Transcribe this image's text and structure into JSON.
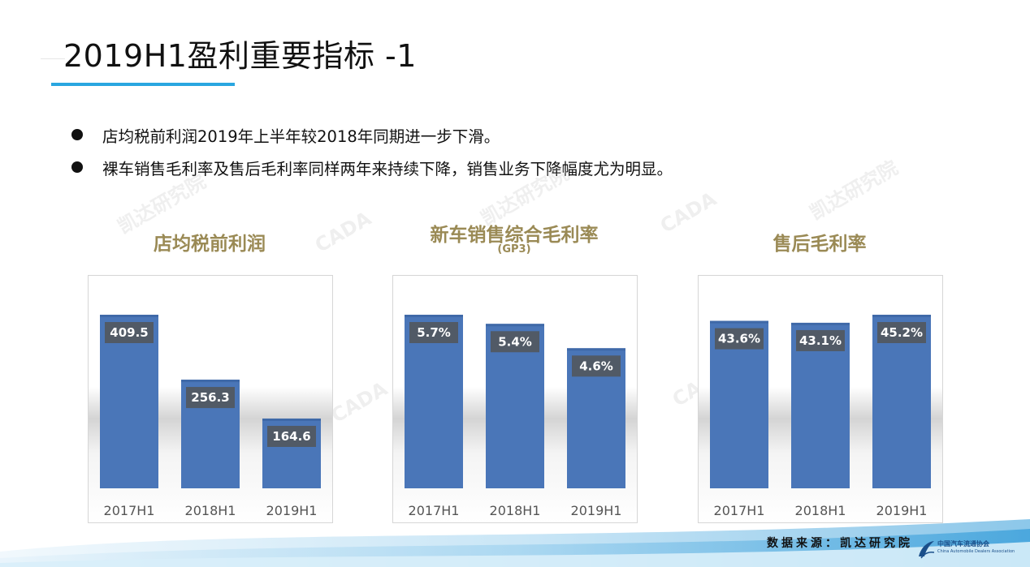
{
  "page": {
    "title": "2019H1盈利重要指标 -1",
    "bullets": [
      "店均税前利润2019年上半年较2018年同期进一步下滑。",
      "裸车销售毛利率及售后毛利率同样两年来持续下降，销售业务下降幅度尤为明显。"
    ],
    "source": "数据来源：凯达研究院",
    "org_name": "中国汽车流通协会",
    "org_name_en": "China Automobile Dealers Association",
    "watermark_text_cn": "凯达研究院",
    "watermark_text_en": "CADA"
  },
  "colors": {
    "bar": "#4a76b8",
    "bar_dark": "#3f69a8",
    "label_bg": "#515a66",
    "title_accent": "#29a6e0",
    "chart_title": "#9a8a55"
  },
  "chart_data": [
    {
      "type": "bar",
      "title": "店均税前利润",
      "subtitle": "",
      "categories": [
        "2017H1",
        "2018H1",
        "2019H1"
      ],
      "values": [
        409.5,
        256.3,
        164.6
      ],
      "value_labels": [
        "409.5",
        "256.3",
        "164.6"
      ],
      "ylim": [
        0,
        409.5
      ],
      "grid": false,
      "legend": "none"
    },
    {
      "type": "bar",
      "title": "新车销售综合毛利率",
      "subtitle": "(GP3)",
      "categories": [
        "2017H1",
        "2018H1",
        "2019H1"
      ],
      "values": [
        5.7,
        5.4,
        4.6
      ],
      "value_labels": [
        "5.7%",
        "5.4%",
        "4.6%"
      ],
      "ylim": [
        0,
        5.7
      ],
      "grid": false,
      "legend": "none"
    },
    {
      "type": "bar",
      "title": "售后毛利率",
      "subtitle": "",
      "categories": [
        "2017H1",
        "2018H1",
        "2019H1"
      ],
      "values": [
        43.6,
        43.1,
        45.2
      ],
      "value_labels": [
        "43.6%",
        "43.1%",
        "45.2%"
      ],
      "ylim": [
        0,
        45.2
      ],
      "grid": false,
      "legend": "none"
    }
  ]
}
